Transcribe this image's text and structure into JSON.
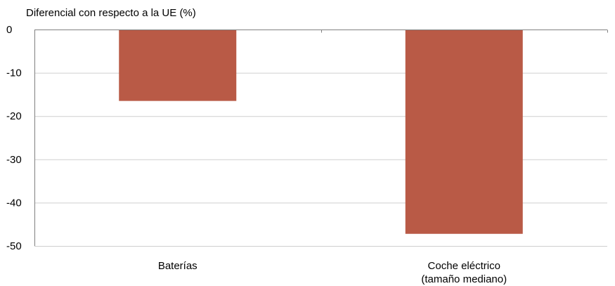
{
  "chart_data": {
    "type": "bar",
    "title": "",
    "ylabel": "Diferencial con respecto a la UE (%)",
    "xlabel": "",
    "categories": [
      [
        "Baterías"
      ],
      [
        "Coche eléctrico",
        "(tamaño mediano)"
      ]
    ],
    "values": [
      -16.5,
      -47.2
    ],
    "ylim": [
      -50,
      0
    ],
    "yticks": [
      0,
      -10,
      -20,
      -30,
      -40,
      -50
    ],
    "ytick_labels": [
      "0",
      "-10",
      "-20",
      "-30",
      "-40",
      "-50"
    ],
    "grid": true,
    "legend": false,
    "colors": {
      "bar": "#b95a46",
      "grid": "#cfcfcf",
      "axis": "#808080"
    }
  }
}
